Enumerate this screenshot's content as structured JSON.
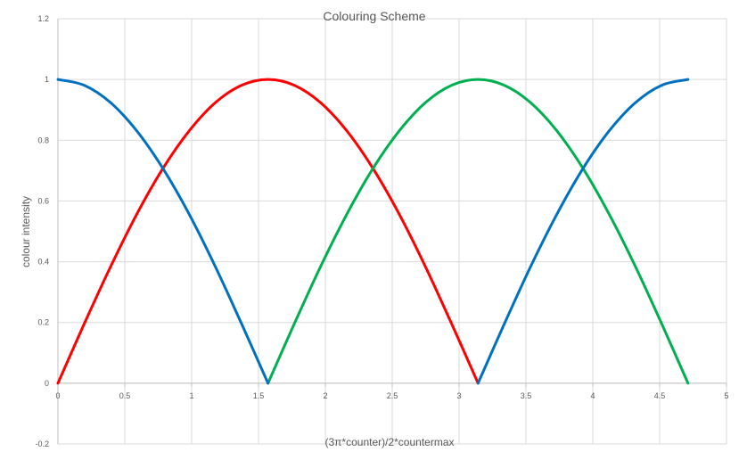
{
  "chart_data": {
    "type": "line",
    "title": "Colouring Scheme",
    "xlabel": "(3π*counter)/2*countermax",
    "ylabel": "colour intensity",
    "xlim": [
      0,
      5
    ],
    "ylim": [
      -0.2,
      1.2
    ],
    "x_ticks": [
      0,
      0.5,
      1,
      1.5,
      2,
      2.5,
      3,
      3.5,
      4,
      4.5,
      5
    ],
    "x_tick_labels": [
      "0",
      "0.5",
      "1",
      "1.5",
      "2",
      "2.5",
      "3",
      "3.5",
      "4",
      "4.5",
      "5"
    ],
    "y_ticks": [
      -0.2,
      0,
      0.2,
      0.4,
      0.6,
      0.8,
      1,
      1.2
    ],
    "y_tick_labels": [
      "-0.2",
      "0",
      "0.2",
      "0.4",
      "0.6",
      "0.8",
      "1",
      "1.2"
    ],
    "grid": true,
    "legend": "none",
    "series": [
      {
        "color": "#ff0000",
        "x": [
          0,
          0.196,
          0.393,
          0.589,
          0.785,
          0.982,
          1.178,
          1.374,
          1.571,
          1.767,
          1.963,
          2.16,
          2.356,
          2.553,
          2.749,
          2.945,
          3.142
        ],
        "values": [
          0,
          0.195,
          0.383,
          0.556,
          0.707,
          0.831,
          0.924,
          0.981,
          1,
          0.981,
          0.924,
          0.831,
          0.707,
          0.556,
          0.383,
          0.195,
          0
        ]
      },
      {
        "color": "#00b050",
        "x": [
          1.571,
          1.767,
          1.963,
          2.16,
          2.356,
          2.553,
          2.749,
          2.945,
          3.142,
          3.338,
          3.534,
          3.731,
          3.927,
          4.123,
          4.32,
          4.516,
          4.712
        ],
        "values": [
          0,
          0.195,
          0.383,
          0.556,
          0.707,
          0.831,
          0.924,
          0.981,
          1,
          0.981,
          0.924,
          0.831,
          0.707,
          0.556,
          0.383,
          0.195,
          0
        ]
      },
      {
        "color": "#0070c0",
        "x": [
          0,
          0.196,
          0.393,
          0.589,
          0.785,
          0.982,
          1.178,
          1.374,
          1.571,
          3.142,
          3.338,
          3.534,
          3.731,
          3.927,
          4.123,
          4.32,
          4.516,
          4.712
        ],
        "values": [
          1,
          0.981,
          0.924,
          0.831,
          0.707,
          0.556,
          0.383,
          0.195,
          0,
          0,
          0.195,
          0.383,
          0.556,
          0.707,
          0.831,
          0.924,
          0.981,
          1
        ]
      }
    ]
  }
}
